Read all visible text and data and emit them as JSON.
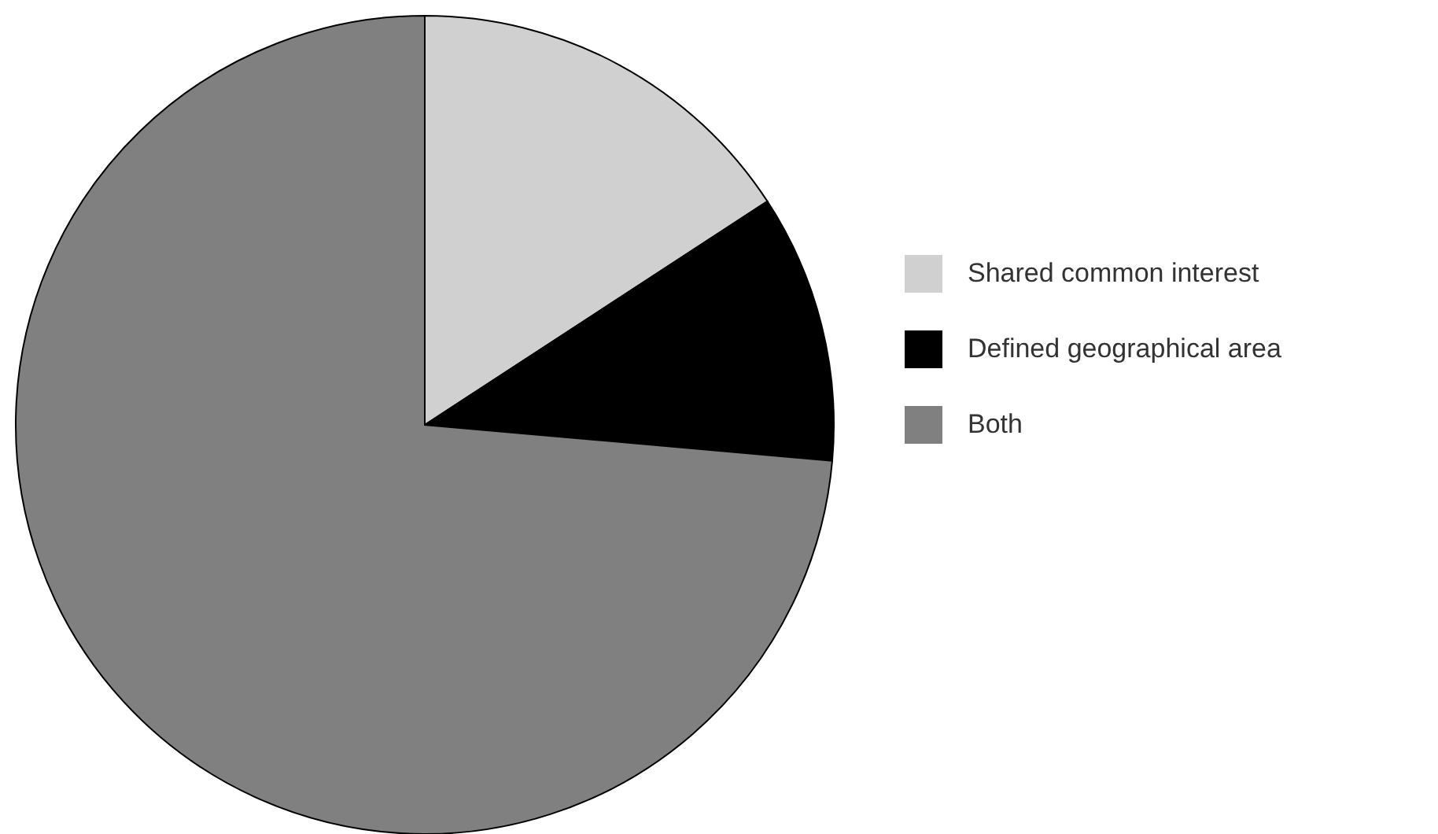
{
  "chart_data": {
    "type": "pie",
    "categories": [
      "Shared common interest",
      "Defined geographical area",
      "Both"
    ],
    "values": [
      15.8,
      10.6,
      73.6
    ],
    "colors": [
      "#d0d0d0",
      "#000000",
      "#808080"
    ],
    "legend": "right"
  }
}
